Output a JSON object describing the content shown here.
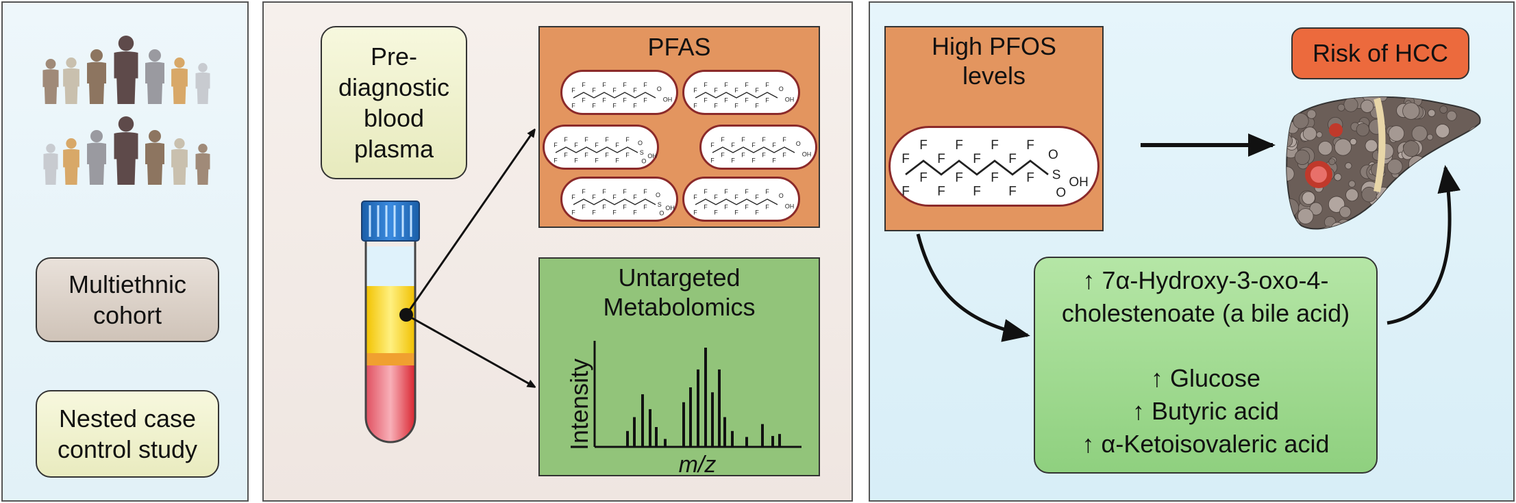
{
  "left_panel": {
    "cohort_label": "Multiethnic cohort",
    "study_label": "Nested case control study"
  },
  "middle_panel": {
    "sample_label": "Pre-diagnostic blood plasma",
    "pfas_title": "PFAS",
    "metabolomics_title": "Untargeted Metabolomics",
    "spectrum_ylabel": "Intensity",
    "spectrum_xlabel": "m/z"
  },
  "molecule_labels": {
    "fluorine": "F",
    "oxygen": "O",
    "hydroxyl": "OH",
    "sulfur": "S"
  },
  "right_panel": {
    "pfos_title": "High PFOS levels",
    "risk_label": "Risk of HCC",
    "bile_acid_line1": "↑ 7α-Hydroxy-3-oxo-4-",
    "bile_acid_line2": "cholestenoate (a bile acid)",
    "metabolite_1": "↑  Glucose",
    "metabolite_2": "↑  Butyric acid",
    "metabolite_3": "↑ α-Ketoisovaleric acid"
  },
  "colors": {
    "pfas_box": "#e3955f",
    "metabolomics_box": "#92c47a",
    "risk_box": "#ec6a3d",
    "tube_cap": "#1f6fc0",
    "plasma": "#f3d21b",
    "blood": "#d9242f"
  }
}
